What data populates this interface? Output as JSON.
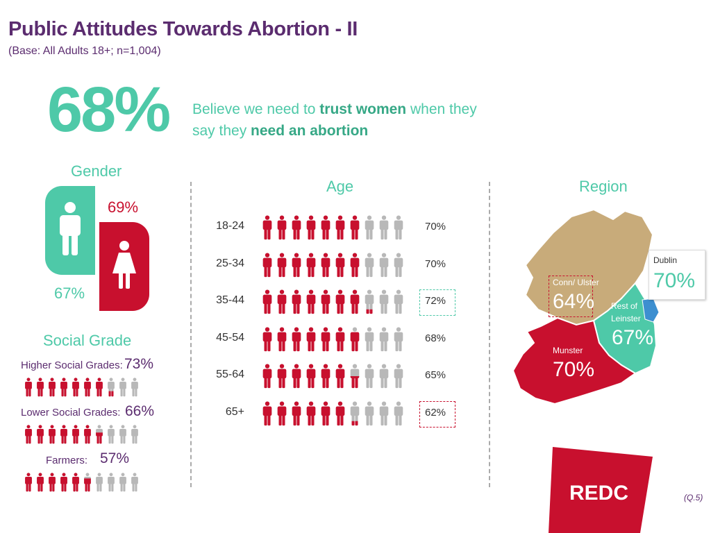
{
  "title": "Public Attitudes Towards Abortion - II",
  "subtitle": "(Base: All Adults 18+; n=1,004)",
  "headline": {
    "big": "68%",
    "text_a": "Believe we need to ",
    "text_b": "trust women",
    "text_c": " when they say they ",
    "text_d": "need an abortion"
  },
  "gender": {
    "title": "Gender",
    "male_pct": "67%",
    "female_pct": "69%",
    "male_value": 67,
    "female_value": 69,
    "male_color": "#4ec9a8",
    "female_color": "#c8102e"
  },
  "social_grade": {
    "title": "Social Grade",
    "rows": [
      {
        "label": "Higher Social Grades:",
        "pct": "73%",
        "value": 73
      },
      {
        "label": "Lower Social Grades:",
        "pct": "66%",
        "value": 66
      },
      {
        "label": "Farmers:",
        "pct": "57%",
        "value": 57
      }
    ]
  },
  "chart_data": {
    "type": "bar",
    "title": "Age",
    "categories": [
      "18-24",
      "25-34",
      "35-44",
      "45-54",
      "55-64",
      "65+"
    ],
    "values": [
      70,
      70,
      72,
      68,
      65,
      62
    ],
    "labels": [
      "70%",
      "70%",
      "72%",
      "68%",
      "65%",
      "62%"
    ],
    "highlighted": [
      "35-44",
      "65+"
    ],
    "ylim": [
      0,
      100
    ]
  },
  "region": {
    "title": "Region",
    "items": [
      {
        "name": "Dublin",
        "pct": "70%",
        "color": "#4aa3d8"
      },
      {
        "name": "Conn/ Ulster",
        "pct": "64%",
        "color": "#c8ab7a"
      },
      {
        "name": "Rest of Leinster",
        "pct": "67%",
        "color": "#4ec9a8"
      },
      {
        "name": "Munster",
        "pct": "70%",
        "color": "#c8102e"
      }
    ]
  },
  "logo": "REDC",
  "footnote": "(Q.5)",
  "colors": {
    "red": "#c8102e",
    "grey": "#b8b8b8",
    "teal": "#4ec9a8",
    "purple": "#5b2c6f"
  }
}
